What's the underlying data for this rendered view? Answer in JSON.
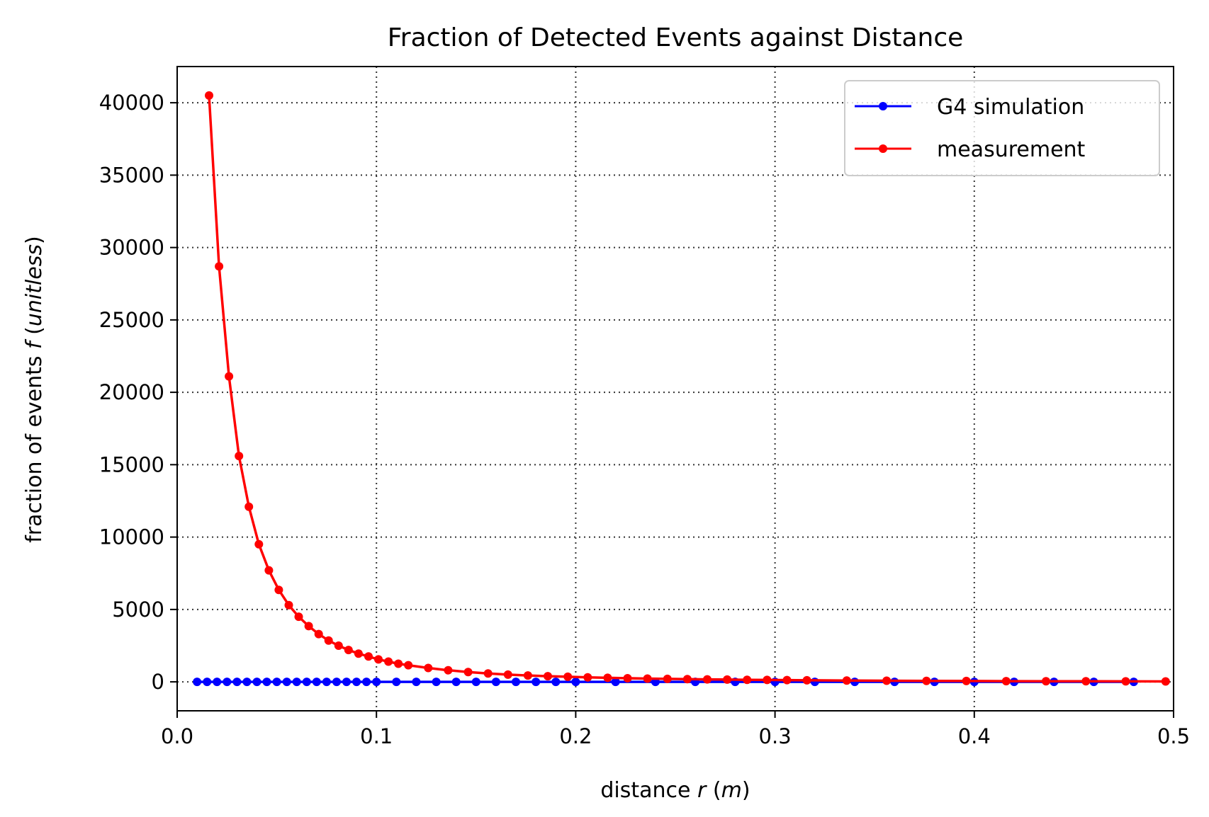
{
  "chart_data": {
    "type": "line",
    "title": "Fraction of Detected Events against Distance",
    "xlabel": {
      "main": "distance ",
      "var": "r",
      "open": " (",
      "unit": "m",
      "close": ")"
    },
    "ylabel": {
      "main": "fraction of events ",
      "var": "f",
      "open": " (",
      "unit": "unitless",
      "close": ")"
    },
    "xlim": [
      0.0,
      0.5
    ],
    "ylim": [
      -2000,
      42500
    ],
    "xticks": [
      0.0,
      0.1,
      0.2,
      0.3,
      0.4,
      0.5
    ],
    "xtick_labels": [
      "0.0",
      "0.1",
      "0.2",
      "0.3",
      "0.4",
      "0.5"
    ],
    "yticks": [
      0,
      5000,
      10000,
      15000,
      20000,
      25000,
      30000,
      35000,
      40000
    ],
    "ytick_labels": [
      "0",
      "5000",
      "10000",
      "15000",
      "20000",
      "25000",
      "30000",
      "35000",
      "40000"
    ],
    "grid": true,
    "legend_position": "top-right",
    "series": [
      {
        "name": "G4 simulation",
        "color": "#0000ff",
        "x": [
          0.01,
          0.015,
          0.02,
          0.025,
          0.03,
          0.035,
          0.04,
          0.045,
          0.05,
          0.055,
          0.06,
          0.065,
          0.07,
          0.075,
          0.08,
          0.085,
          0.09,
          0.095,
          0.1,
          0.11,
          0.12,
          0.13,
          0.14,
          0.15,
          0.16,
          0.17,
          0.18,
          0.19,
          0.2,
          0.22,
          0.24,
          0.26,
          0.28,
          0.3,
          0.32,
          0.34,
          0.36,
          0.38,
          0.4,
          0.42,
          0.44,
          0.46,
          0.48
        ],
        "y": [
          0,
          0,
          0,
          0,
          0,
          0,
          0,
          0,
          0,
          0,
          0,
          0,
          0,
          0,
          0,
          0,
          0,
          0,
          0,
          0,
          0,
          0,
          0,
          0,
          0,
          0,
          0,
          0,
          0,
          0,
          0,
          0,
          0,
          0,
          0,
          0,
          0,
          0,
          0,
          0,
          0,
          0,
          0
        ]
      },
      {
        "name": "measurement",
        "color": "#ff0000",
        "x": [
          0.016,
          0.021,
          0.026,
          0.031,
          0.036,
          0.041,
          0.046,
          0.051,
          0.056,
          0.061,
          0.066,
          0.071,
          0.076,
          0.081,
          0.086,
          0.091,
          0.096,
          0.101,
          0.106,
          0.111,
          0.116,
          0.126,
          0.136,
          0.146,
          0.156,
          0.166,
          0.176,
          0.186,
          0.196,
          0.206,
          0.216,
          0.226,
          0.236,
          0.246,
          0.256,
          0.266,
          0.276,
          0.286,
          0.296,
          0.306,
          0.316,
          0.336,
          0.356,
          0.376,
          0.396,
          0.416,
          0.436,
          0.456,
          0.476,
          0.496
        ],
        "y": [
          40500,
          28700,
          21100,
          15600,
          12100,
          9500,
          7700,
          6350,
          5300,
          4500,
          3850,
          3300,
          2850,
          2500,
          2200,
          1950,
          1750,
          1550,
          1400,
          1250,
          1150,
          960,
          800,
          680,
          580,
          500,
          440,
          390,
          350,
          310,
          280,
          250,
          225,
          205,
          185,
          170,
          155,
          140,
          130,
          120,
          110,
          95,
          80,
          70,
          60,
          50,
          45,
          40,
          35,
          30
        ]
      }
    ]
  }
}
